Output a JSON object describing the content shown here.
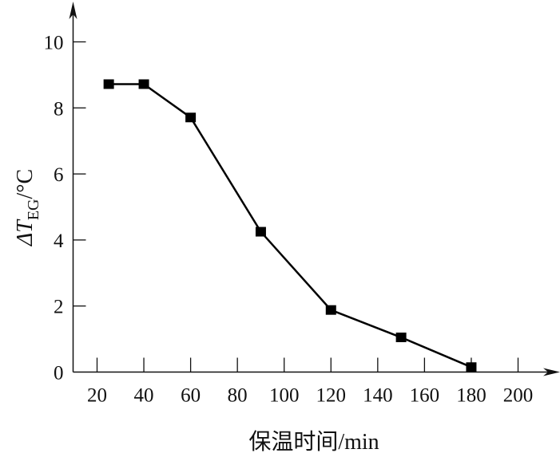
{
  "chart_data": {
    "type": "line",
    "title": "",
    "xlabel": "保温时间/min",
    "ylabel_parts": {
      "prefix": "ΔT",
      "subscript": "EG",
      "unit": "/°C"
    },
    "x": [
      25,
      40,
      60,
      90,
      120,
      150,
      180
    ],
    "series": [
      {
        "name": "ΔT_EG",
        "values": [
          8.72,
          8.72,
          7.71,
          4.25,
          1.88,
          1.05,
          0.15
        ],
        "marker": "square",
        "color": "#000000"
      }
    ],
    "xlim": [
      20,
      200
    ],
    "ylim": [
      0,
      10
    ],
    "xticks": [
      "20",
      "40",
      "60",
      "80",
      "100",
      "120",
      "140",
      "160",
      "180",
      "200"
    ],
    "yticks": [
      "0",
      "2",
      "4",
      "6",
      "8",
      "10"
    ],
    "grid": false,
    "legend": "none"
  }
}
